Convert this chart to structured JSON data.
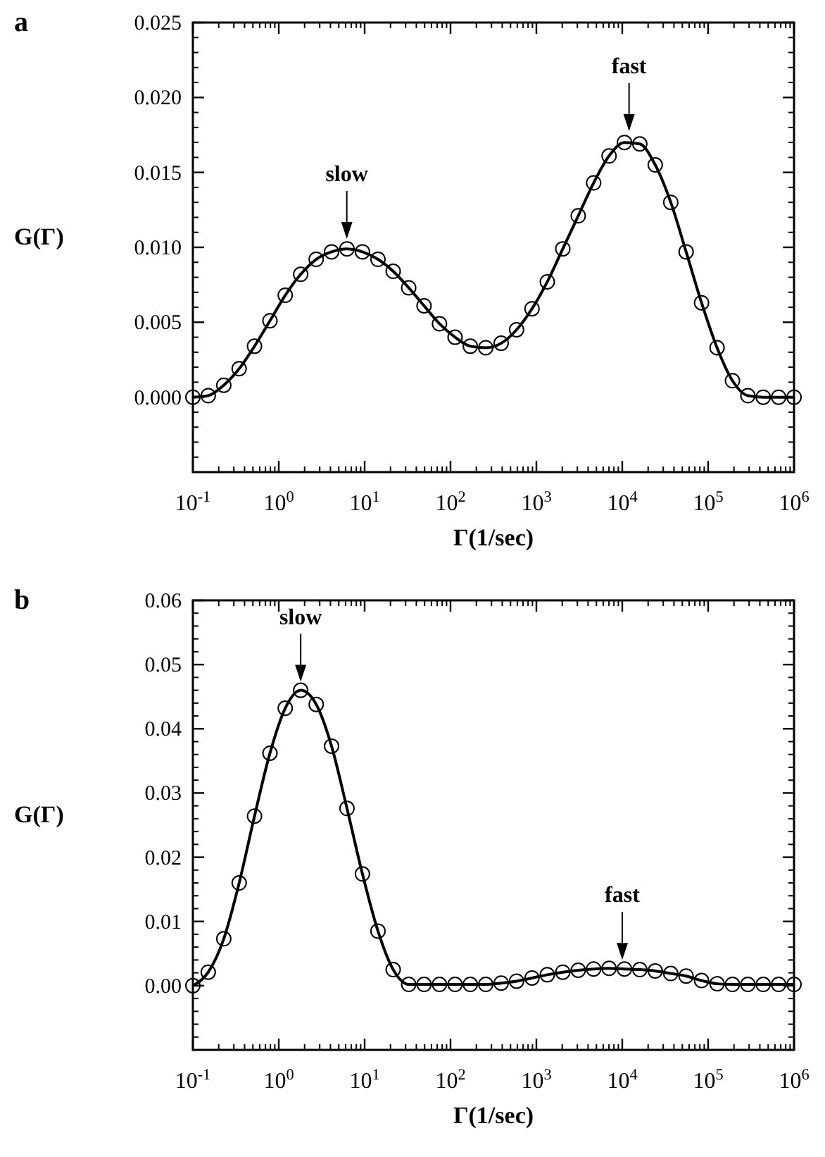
{
  "chart_data": [
    {
      "type": "line",
      "title": "a",
      "xlabel": "Γ(1/sec)",
      "ylabel": "G(Γ)",
      "log": "x",
      "marker": "circle",
      "line_style": "solid",
      "grid": false,
      "x": [
        0.1,
        0.151,
        0.229,
        0.346,
        0.522,
        0.79,
        1.19,
        1.8,
        2.73,
        4.12,
        6.23,
        9.43,
        14.3,
        21.5,
        32.6,
        49.2,
        74.4,
        113,
        170,
        257,
        389,
        588,
        889,
        1340,
        2030,
        3070,
        4640,
        7020,
        10600,
        16000,
        24200,
        36700,
        55400,
        83800,
        127000,
        192000,
        290000,
        438000,
        662000,
        1000000
      ],
      "series": [
        {
          "color": "#000000",
          "values": [
            0.0,
            0.0001,
            0.0008,
            0.0019,
            0.0034,
            0.0051,
            0.0068,
            0.0082,
            0.0092,
            0.0097,
            0.0099,
            0.0097,
            0.0092,
            0.0084,
            0.0073,
            0.0061,
            0.0049,
            0.004,
            0.0034,
            0.0033,
            0.0036,
            0.0045,
            0.0059,
            0.0077,
            0.0099,
            0.0121,
            0.0143,
            0.0161,
            0.017,
            0.0169,
            0.0155,
            0.013,
            0.0097,
            0.0063,
            0.0033,
            0.0011,
            0.0001,
            0.0,
            0.0,
            0.0
          ]
        }
      ],
      "xlim": [
        0.1,
        1000000
      ],
      "xticks": [
        {
          "value": 0.1,
          "label": "10$^{-1}$"
        },
        {
          "value": 1,
          "label": "10$^{0}$"
        },
        {
          "value": 10,
          "label": "10$^{1}$"
        },
        {
          "value": 100,
          "label": "10$^{2}$"
        },
        {
          "value": 1000,
          "label": "10$^{3}$"
        },
        {
          "value": 10000,
          "label": "10$^{4}$"
        },
        {
          "value": 100000,
          "label": "10$^{5}$"
        },
        {
          "value": 1000000,
          "label": "10$^{6}$"
        }
      ],
      "ylim": [
        -0.005,
        0.025
      ],
      "yticks": [
        {
          "value": 0,
          "label": "0.000"
        },
        {
          "value": 0.005,
          "label": "0.005"
        },
        {
          "value": 0.01,
          "label": "0.010"
        },
        {
          "value": 0.015,
          "label": "0.015"
        },
        {
          "value": 0.02,
          "label": "0.020"
        },
        {
          "value": 0.025,
          "label": "0.025"
        }
      ],
      "annotations": [
        {
          "text": "slow",
          "x": 6.2,
          "y": 0.01
        },
        {
          "text": "fast",
          "x": 12000,
          "y": 0.0172
        }
      ]
    },
    {
      "type": "line",
      "title": "b",
      "xlabel": "Γ(1/sec)",
      "ylabel": "G(Γ)",
      "log": "x",
      "marker": "circle",
      "line_style": "solid",
      "grid": false,
      "x": [
        0.1,
        0.151,
        0.229,
        0.346,
        0.522,
        0.79,
        1.19,
        1.8,
        2.73,
        4.12,
        6.23,
        9.43,
        14.3,
        21.5,
        32.6,
        49.2,
        74.4,
        113,
        170,
        257,
        389,
        588,
        889,
        1340,
        2030,
        3070,
        4640,
        7020,
        10600,
        16000,
        24200,
        36700,
        55400,
        83800,
        127000,
        192000,
        290000,
        438000,
        662000,
        1000000
      ],
      "series": [
        {
          "color": "#000000",
          "values": [
            0.0,
            0.0021,
            0.0073,
            0.016,
            0.0264,
            0.0362,
            0.0432,
            0.046,
            0.0438,
            0.0373,
            0.0276,
            0.0174,
            0.0085,
            0.0025,
            0.0002,
            0.0002,
            0.0002,
            0.0002,
            0.0002,
            0.0002,
            0.0004,
            0.0007,
            0.0012,
            0.0017,
            0.0021,
            0.0024,
            0.0026,
            0.0027,
            0.0026,
            0.0025,
            0.0023,
            0.0019,
            0.0015,
            0.0008,
            0.0003,
            0.0002,
            0.0002,
            0.0002,
            0.0002,
            0.0002
          ]
        }
      ],
      "xlim": [
        0.1,
        1000000
      ],
      "xticks": [
        {
          "value": 0.1,
          "label": "10$^{-1}$"
        },
        {
          "value": 1,
          "label": "10$^{0}$"
        },
        {
          "value": 10,
          "label": "10$^{1}$"
        },
        {
          "value": 100,
          "label": "10$^{2}$"
        },
        {
          "value": 1000,
          "label": "10$^{3}$"
        },
        {
          "value": 10000,
          "label": "10$^{4}$"
        },
        {
          "value": 100000,
          "label": "10$^{5}$"
        },
        {
          "value": 1000000,
          "label": "10$^{6}$"
        }
      ],
      "ylim": [
        -0.01,
        0.06
      ],
      "yticks": [
        {
          "value": 0,
          "label": "0.00"
        },
        {
          "value": 0.01,
          "label": "0.01"
        },
        {
          "value": 0.02,
          "label": "0.02"
        },
        {
          "value": 0.03,
          "label": "0.03"
        },
        {
          "value": 0.04,
          "label": "0.04"
        },
        {
          "value": 0.05,
          "label": "0.05"
        },
        {
          "value": 0.06,
          "label": "0.06"
        }
      ],
      "annotations": [
        {
          "text": "slow",
          "x": 1.8,
          "y": 0.046
        },
        {
          "text": "fast",
          "x": 10000,
          "y": 0.0027
        }
      ]
    }
  ]
}
